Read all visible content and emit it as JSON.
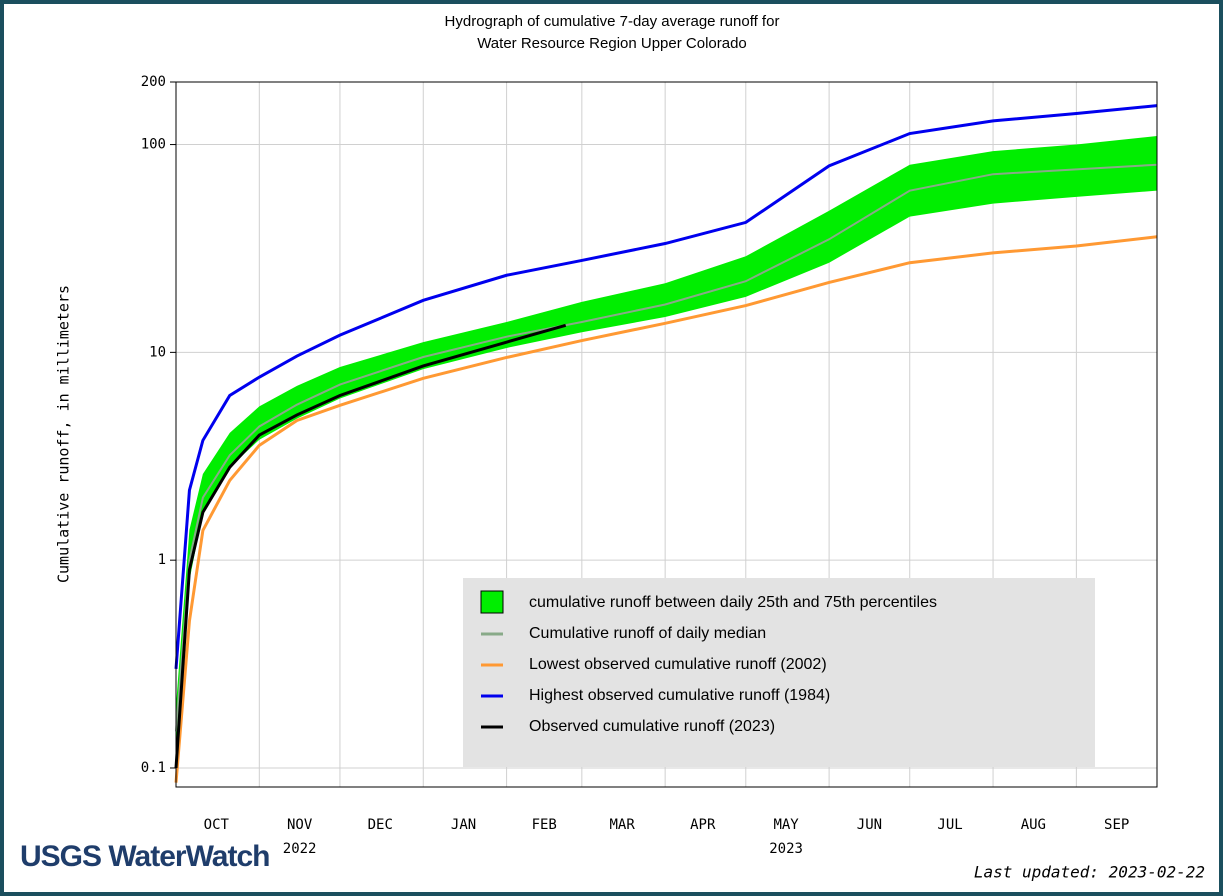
{
  "chart_data": {
    "type": "line",
    "title_lines": [
      "Hydrograph of cumulative 7-day average  runoff for",
      "Water Resource Region Upper Colorado"
    ],
    "ylabel": "Cumulative runoff, in millimeters",
    "log_y": true,
    "grid": true,
    "ylim": [
      0.081,
      200
    ],
    "yticks": [
      0.1,
      1,
      10,
      100,
      200
    ],
    "xlim": [
      0,
      365
    ],
    "month_starts": [
      0,
      31,
      61,
      92,
      123,
      151,
      182,
      212,
      243,
      273,
      304,
      335,
      365
    ],
    "xticks": [
      {
        "value": 15,
        "label": "OCT"
      },
      {
        "value": 46,
        "label": "NOV"
      },
      {
        "value": 76,
        "label": "DEC"
      },
      {
        "value": 107,
        "label": "JAN"
      },
      {
        "value": 137,
        "label": "FEB"
      },
      {
        "value": 166,
        "label": "MAR"
      },
      {
        "value": 196,
        "label": "APR"
      },
      {
        "value": 227,
        "label": "MAY"
      },
      {
        "value": 258,
        "label": "JUN"
      },
      {
        "value": 288,
        "label": "JUL"
      },
      {
        "value": 319,
        "label": "AUG"
      },
      {
        "value": 350,
        "label": "SEP"
      }
    ],
    "year_labels": [
      {
        "value": 46,
        "label": "2022"
      },
      {
        "value": 227,
        "label": "2023"
      }
    ],
    "x": [
      0,
      5,
      10,
      20,
      31,
      45,
      61,
      92,
      123,
      151,
      182,
      212,
      243,
      273,
      304,
      335,
      365
    ],
    "band": {
      "name": "cumulative runoff between daily 25th and 75th percentiles",
      "color": "#00ee00",
      "lower": [
        0.12,
        0.8,
        1.7,
        2.8,
        3.8,
        4.8,
        6.0,
        8.3,
        10.5,
        12.5,
        14.8,
        18.5,
        27,
        45,
        52,
        56,
        60
      ],
      "upper": [
        0.2,
        1.4,
        2.6,
        4.1,
        5.5,
        6.9,
        8.5,
        11.2,
        14,
        17.5,
        21.5,
        29,
        48,
        80,
        93,
        100,
        110
      ]
    },
    "series": [
      {
        "name": "Cumulative runoff of daily median",
        "color": "#88aa88",
        "values": [
          0.15,
          1.0,
          2.0,
          3.2,
          4.4,
          5.6,
          7.0,
          9.5,
          11.9,
          14,
          17,
          22,
          35,
          60,
          72,
          76,
          80
        ]
      },
      {
        "name": "Lowest observed cumulative runoff (2002)",
        "color": "#ff9933",
        "values": [
          0.085,
          0.51,
          1.39,
          2.42,
          3.57,
          4.7,
          5.56,
          7.5,
          9.45,
          11.4,
          13.8,
          16.8,
          21.7,
          27,
          30.1,
          32.5,
          36
        ]
      },
      {
        "name": "Highest observed cumulative runoff (1984)",
        "color": "#0000ee",
        "values": [
          0.3,
          2.17,
          3.77,
          6.2,
          7.6,
          9.6,
          12.1,
          17.8,
          23.5,
          27.7,
          33.4,
          42.2,
          79,
          113,
          130,
          141,
          154
        ]
      },
      {
        "name": "Observed cumulative runoff (2023)",
        "color": "#000000",
        "x": [
          0,
          5,
          10,
          20,
          31,
          45,
          61,
          92,
          123,
          145
        ],
        "values": [
          0.1,
          0.9,
          1.7,
          2.8,
          4.0,
          5.0,
          6.2,
          8.6,
          11.2,
          13.5
        ]
      }
    ],
    "legend": "lower right",
    "logo": "USGS WaterWatch",
    "updated": "Last updated: 2023-02-22"
  }
}
